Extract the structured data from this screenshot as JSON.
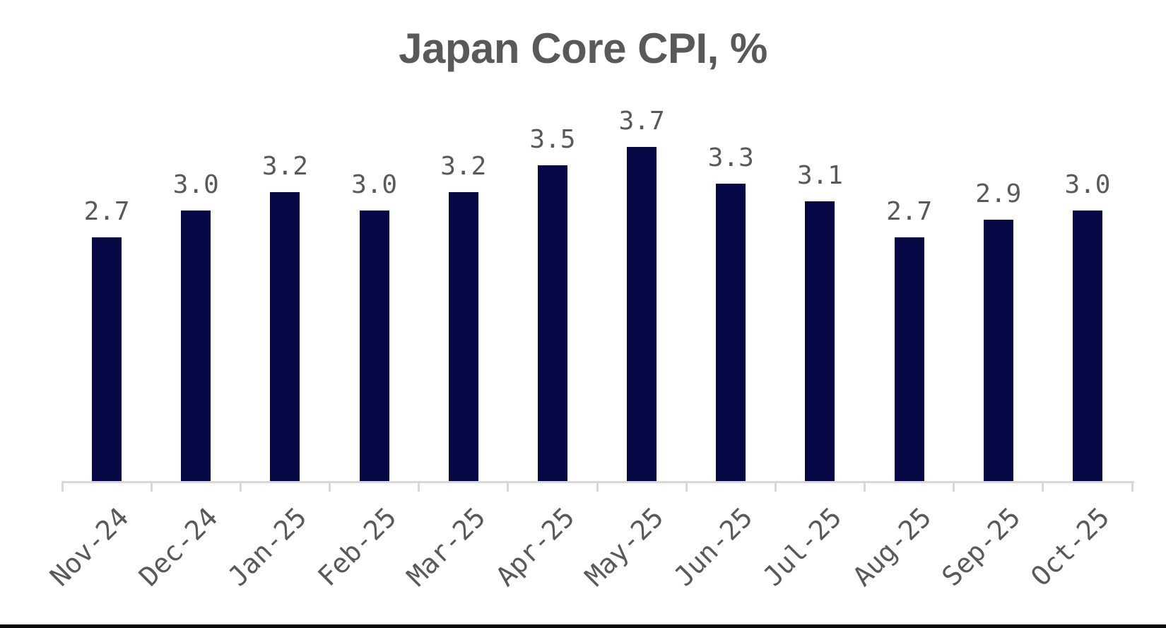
{
  "title": "Japan Core CPI, %",
  "chart_data": {
    "type": "bar",
    "title": "Japan Core CPI, %",
    "categories": [
      "Nov-24",
      "Dec-24",
      "Jan-25",
      "Feb-25",
      "Mar-25",
      "Apr-25",
      "May-25",
      "Jun-25",
      "Jul-25",
      "Aug-25",
      "Sep-25",
      "Oct-25"
    ],
    "values": [
      2.7,
      3.0,
      3.2,
      3.0,
      3.2,
      3.5,
      3.7,
      3.3,
      3.1,
      2.7,
      2.9,
      3.0
    ],
    "data_labels": [
      "2.7",
      "3.0",
      "3.2",
      "3.0",
      "3.2",
      "3.5",
      "3.7",
      "3.3",
      "3.1",
      "2.7",
      "2.9",
      "3.0"
    ],
    "xlabel": "",
    "ylabel": "",
    "ylim": [
      0,
      5.3
    ],
    "grid": false,
    "legend": false,
    "x_tick_rotation": 45,
    "bar_color": "#060845",
    "label_color": "#595959",
    "axis_color": "#d8d8d8",
    "background": "#ffffff"
  }
}
